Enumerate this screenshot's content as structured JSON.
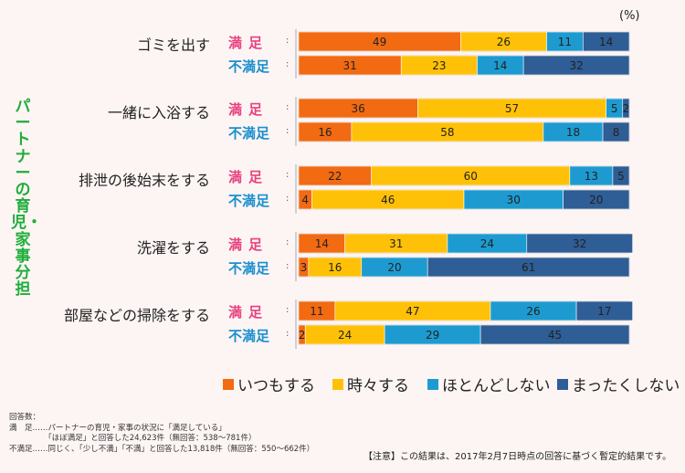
{
  "side_title": "パートナーの育児・家事分担",
  "unit_label": "(%)",
  "legend": [
    {
      "label": "いつもする",
      "color": "#f26a12"
    },
    {
      "label": "時々する",
      "color": "#ffc107"
    },
    {
      "label": "ほとんどしない",
      "color": "#1d9bd1"
    },
    {
      "label": "まったくしない",
      "color": "#2f5d95"
    }
  ],
  "notes": {
    "heading": "回答数：",
    "line1": "満　足……パートナーの育児・家事の状況に「満足している」",
    "line2": "　　　　　「ほぼ満足」と回答した24,623件（無回答：538〜781件）",
    "line3": "不満足……同じく、「少し不満」「不満」と回答した13,818件（無回答：550〜662件）"
  },
  "notice": "【注意】この結果は、2017年2月7日時点の回答に基づく暫定的結果です。",
  "chart_data": {
    "type": "bar",
    "orientation": "horizontal",
    "stacked": true,
    "title": "",
    "xlim": [
      0,
      100
    ],
    "unit": "%",
    "subgroup_labels": {
      "sat": "満足",
      "dis": "不満足"
    },
    "series_names": [
      "いつもする",
      "時々する",
      "ほとんどしない",
      "まったくしない"
    ],
    "series_colors": [
      "#f26a12",
      "#ffc107",
      "#1d9bd1",
      "#2f5d95"
    ],
    "categories": [
      "ゴミを出す",
      "一緒に入浴する",
      "排泄の後始末をする",
      "洗濯をする",
      "部屋などの掃除をする"
    ],
    "rows": [
      {
        "category": "ゴミを出す",
        "group": "sat",
        "values": [
          49,
          26,
          11,
          14
        ]
      },
      {
        "category": "ゴミを出す",
        "group": "dis",
        "values": [
          31,
          23,
          14,
          32
        ]
      },
      {
        "category": "一緒に入浴する",
        "group": "sat",
        "values": [
          36,
          57,
          5,
          2
        ]
      },
      {
        "category": "一緒に入浴する",
        "group": "dis",
        "values": [
          16,
          58,
          18,
          8
        ]
      },
      {
        "category": "排泄の後始末をする",
        "group": "sat",
        "values": [
          22,
          60,
          13,
          5
        ]
      },
      {
        "category": "排泄の後始末をする",
        "group": "dis",
        "values": [
          4,
          46,
          30,
          20
        ]
      },
      {
        "category": "洗濯をする",
        "group": "sat",
        "values": [
          14,
          31,
          24,
          32
        ]
      },
      {
        "category": "洗濯をする",
        "group": "dis",
        "values": [
          3,
          16,
          20,
          61
        ]
      },
      {
        "category": "部屋などの掃除をする",
        "group": "sat",
        "values": [
          11,
          47,
          26,
          17
        ]
      },
      {
        "category": "部屋などの掃除をする",
        "group": "dis",
        "values": [
          2,
          24,
          29,
          45
        ]
      }
    ]
  }
}
